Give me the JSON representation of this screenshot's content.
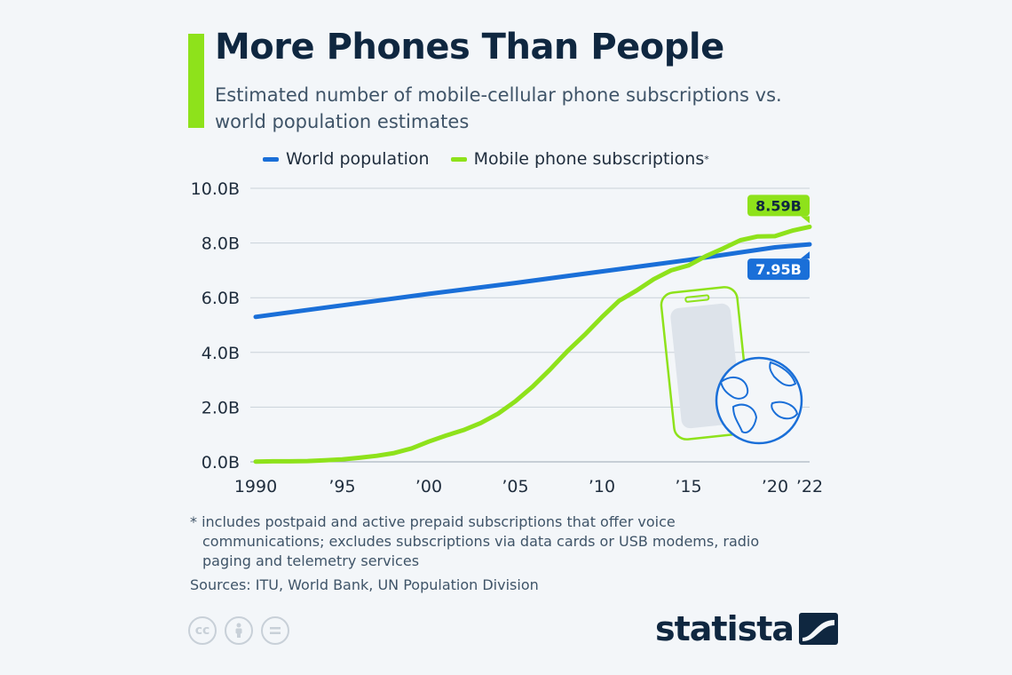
{
  "header": {
    "title": "More Phones Than People",
    "subtitle": "Estimated number of mobile-cellular phone subscriptions vs. world population estimates"
  },
  "legend": {
    "population": "World population",
    "mobile": "Mobile phone subscriptions",
    "mobile_marker": "*"
  },
  "colors": {
    "population": "#1a6fd8",
    "mobile": "#8ee21b",
    "accent": "#8ee21b"
  },
  "chart_data": {
    "type": "line",
    "title": "More Phones Than People",
    "ylim": [
      0,
      10
    ],
    "yticks": [
      "0.0B",
      "2.0B",
      "4.0B",
      "6.0B",
      "8.0B",
      "10.0B"
    ],
    "xticks": [
      {
        "x": 1990,
        "label": "1990"
      },
      {
        "x": 1995,
        "label": "’95"
      },
      {
        "x": 2000,
        "label": "’00"
      },
      {
        "x": 2005,
        "label": "’05"
      },
      {
        "x": 2010,
        "label": "’10"
      },
      {
        "x": 2015,
        "label": "’15"
      },
      {
        "x": 2020,
        "label": "’20"
      },
      {
        "x": 2022,
        "label": "’22"
      }
    ],
    "grid": true,
    "series": [
      {
        "name": "World population",
        "x": [
          1990,
          1995,
          2000,
          2005,
          2010,
          2015,
          2020,
          2022
        ],
        "values": [
          5.3,
          5.72,
          6.14,
          6.54,
          6.96,
          7.38,
          7.84,
          7.95
        ],
        "end_label": "7.95B"
      },
      {
        "name": "Mobile phone subscriptions",
        "x": [
          1990,
          1991,
          1992,
          1993,
          1994,
          1995,
          1996,
          1997,
          1998,
          1999,
          2000,
          2001,
          2002,
          2003,
          2004,
          2005,
          2006,
          2007,
          2008,
          2009,
          2010,
          2011,
          2012,
          2013,
          2014,
          2015,
          2016,
          2017,
          2018,
          2019,
          2020,
          2021,
          2022
        ],
        "values": [
          0.01,
          0.02,
          0.02,
          0.03,
          0.06,
          0.09,
          0.15,
          0.22,
          0.32,
          0.49,
          0.74,
          0.96,
          1.16,
          1.42,
          1.76,
          2.21,
          2.75,
          3.37,
          4.04,
          4.64,
          5.29,
          5.89,
          6.26,
          6.68,
          7.0,
          7.18,
          7.52,
          7.8,
          8.1,
          8.24,
          8.25,
          8.45,
          8.59
        ],
        "end_label": "8.59B"
      }
    ]
  },
  "footnote": {
    "line1": "* includes postpaid and active prepaid subscriptions that offer voice",
    "rest": "communications; excludes subscriptions via data cards or USB modems, radio paging and telemetry services"
  },
  "sources": "Sources: ITU, World Bank, UN Population Division",
  "license_icons": [
    "creative-commons-icon",
    "attribution-icon",
    "no-derivatives-icon"
  ],
  "license_labels": {
    "cc": "cc"
  },
  "brand": {
    "name": "statista"
  }
}
